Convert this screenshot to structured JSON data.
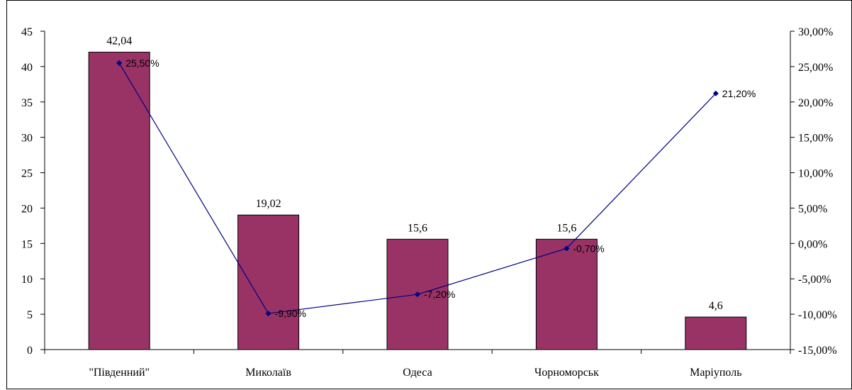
{
  "chart_data": {
    "type": "bar",
    "categories": [
      "\"Південний\"",
      "Миколаїв",
      "Одеса",
      "Чорноморськ",
      "Маріуполь"
    ],
    "bar_values": [
      42.04,
      19.02,
      15.6,
      15.6,
      4.6
    ],
    "bar_labels": [
      "42,04",
      "19,02",
      "15,6",
      "15,6",
      "4,6"
    ],
    "line_values": [
      25.5,
      -9.9,
      -7.2,
      -0.7,
      21.2
    ],
    "line_labels": [
      "25,50%",
      "-9,90%",
      "-7,20%",
      "-0,70%",
      "21,20%"
    ],
    "left_axis": {
      "ylim": [
        0,
        45
      ],
      "ticks": [
        "0",
        "5",
        "10",
        "15",
        "20",
        "25",
        "30",
        "35",
        "40",
        "45"
      ]
    },
    "right_axis": {
      "ylim": [
        -15,
        30
      ],
      "ticks": [
        "-15,00%",
        "-10,00%",
        "-5,00%",
        "0,00%",
        "5,00%",
        "10,00%",
        "15,00%",
        "20,00%",
        "25,00%",
        "30,00%"
      ]
    },
    "title": "",
    "xlabel": "",
    "ylabel": "",
    "grid": false,
    "bar_color": "#993366",
    "line_color": "#000080"
  }
}
